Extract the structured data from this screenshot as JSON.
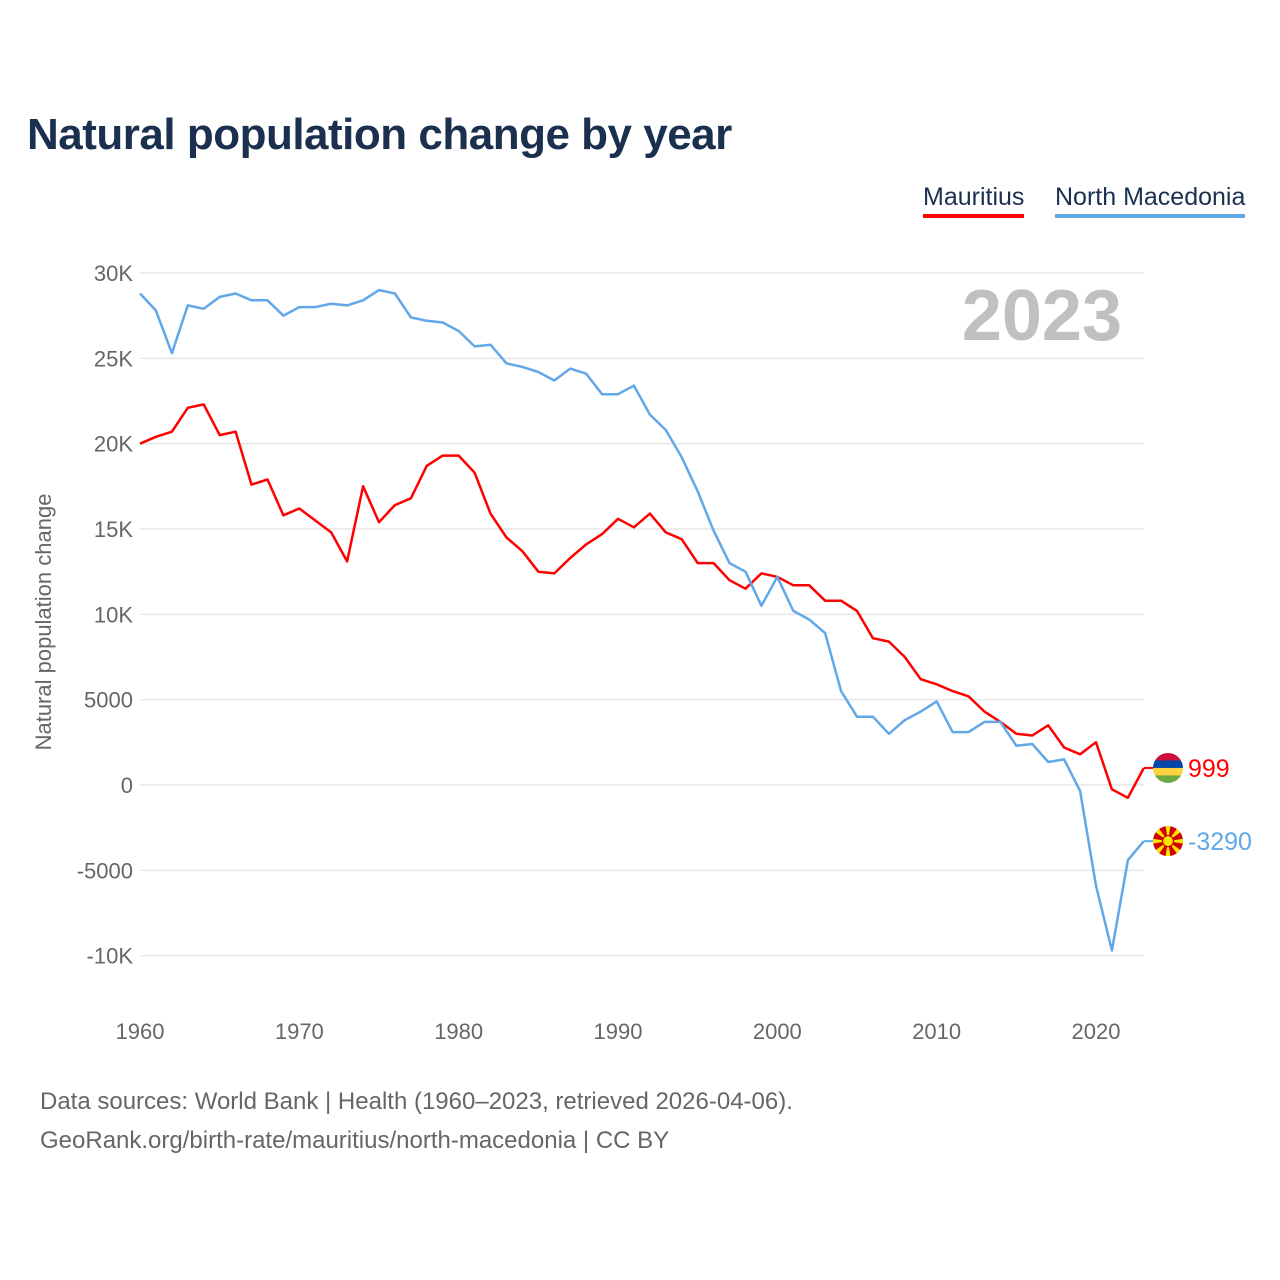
{
  "chart_data": {
    "type": "line",
    "title": "Natural population change by year",
    "xlabel": "",
    "ylabel": "Natural population change",
    "year_label": "2023",
    "xlim": [
      1960,
      2023
    ],
    "ylim": [
      -12000,
      30000
    ],
    "x_ticks": [
      1960,
      1970,
      1980,
      1990,
      2000,
      2010,
      2020
    ],
    "x_tick_labels": [
      "1960",
      "1970",
      "1980",
      "1990",
      "2000",
      "2010",
      "2020"
    ],
    "y_ticks": [
      30000,
      25000,
      20000,
      15000,
      10000,
      5000,
      0,
      -5000,
      -10000
    ],
    "y_tick_labels": [
      "30K",
      "25K",
      "20K",
      "15K",
      "10K",
      "5000",
      "0",
      "-5000",
      "-10K"
    ],
    "grid": true,
    "legend_position": "top-right",
    "x": [
      1960,
      1961,
      1962,
      1963,
      1964,
      1965,
      1966,
      1967,
      1968,
      1969,
      1970,
      1971,
      1972,
      1973,
      1974,
      1975,
      1976,
      1977,
      1978,
      1979,
      1980,
      1981,
      1982,
      1983,
      1984,
      1985,
      1986,
      1987,
      1988,
      1989,
      1990,
      1991,
      1992,
      1993,
      1994,
      1995,
      1996,
      1997,
      1998,
      1999,
      2000,
      2001,
      2002,
      2003,
      2004,
      2005,
      2006,
      2007,
      2008,
      2009,
      2010,
      2011,
      2012,
      2013,
      2014,
      2015,
      2016,
      2017,
      2018,
      2019,
      2020,
      2021,
      2022,
      2023
    ],
    "series": [
      {
        "name": "Mauritius",
        "color": "#ff0000",
        "end_label": "999",
        "flag": "mauritius-flag",
        "values": [
          20000,
          20400,
          20700,
          22100,
          22300,
          20500,
          20700,
          17600,
          17900,
          15800,
          16200,
          15500,
          14800,
          13100,
          17500,
          15400,
          16400,
          16800,
          18700,
          19300,
          19300,
          18300,
          15900,
          14500,
          13700,
          12500,
          12400,
          13300,
          14100,
          14700,
          15600,
          15100,
          15900,
          14800,
          14400,
          13000,
          13000,
          12000,
          11500,
          12400,
          12200,
          11700,
          11700,
          10800,
          10800,
          10200,
          8600,
          8400,
          7500,
          6200,
          5900,
          5500,
          5200,
          4300,
          3700,
          3000,
          2900,
          3500,
          2200,
          1800,
          2500,
          -250,
          -750,
          999
        ]
      },
      {
        "name": "North Macedonia",
        "color": "#62a8e8",
        "end_label": "-3290",
        "flag": "north-macedonia-flag",
        "values": [
          28800,
          27800,
          25300,
          28100,
          27900,
          28600,
          28800,
          28400,
          28400,
          27500,
          28000,
          28000,
          28200,
          28100,
          28400,
          29000,
          28800,
          27400,
          27200,
          27100,
          26600,
          25700,
          25800,
          24700,
          24500,
          24200,
          23700,
          24400,
          24100,
          22900,
          22900,
          23400,
          21700,
          20800,
          19200,
          17200,
          14900,
          13000,
          12500,
          10500,
          12200,
          10200,
          9700,
          8900,
          5500,
          4000,
          4000,
          3000,
          3800,
          4300,
          4900,
          3100,
          3100,
          3700,
          3700,
          2300,
          2400,
          1350,
          1500,
          -350,
          -5900,
          -9700,
          -4400,
          -3290
        ]
      }
    ]
  },
  "footer": {
    "line1": "Data sources: World Bank | Health (1960–2023, retrieved 2026-04-06).",
    "line2": "GeoRank.org/birth-rate/mauritius/north-macedonia | CC BY"
  }
}
